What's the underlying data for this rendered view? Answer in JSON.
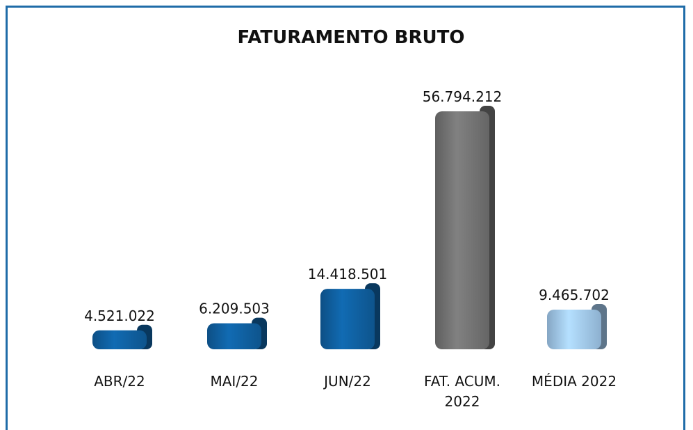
{
  "chart_data": {
    "type": "bar",
    "title": "FATURAMENTO BRUTO",
    "categories": [
      "ABR/22",
      "MAI/22",
      "JUN/22",
      "FAT. ACUM. 2022",
      "MÉDIA 2022"
    ],
    "values": [
      4521022,
      6209503,
      14418501,
      56794212,
      9465702
    ],
    "value_labels": [
      "4.521.022",
      "6.209.503",
      "14.418.501",
      "56.794.212",
      "9.465.702"
    ],
    "colors": [
      "#0f5d9c",
      "#0f5d9c",
      "#0f5d9c",
      "#707070",
      "#9dc3e6"
    ]
  }
}
